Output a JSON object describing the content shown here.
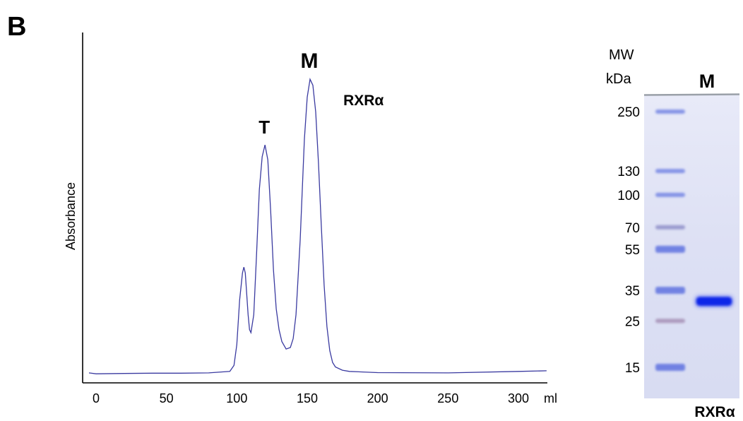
{
  "panel_label": "B",
  "chart_data": [
    {
      "type": "line",
      "title": "",
      "xlabel": "ml",
      "ylabel": "Absorbance",
      "xlim": [
        -8,
        325
      ],
      "ylim": [
        0,
        1
      ],
      "x_ticks": [
        0,
        50,
        100,
        150,
        200,
        250,
        300
      ],
      "x_tick_labels": [
        "0",
        "50",
        "100",
        "150",
        "200",
        "250",
        "300"
      ],
      "grid": false,
      "legend": "none",
      "line_color": "#3a3aa0",
      "series": [
        {
          "name": "RXRα",
          "x": [
            -5,
            0,
            20,
            40,
            60,
            80,
            95,
            98,
            100,
            102,
            104,
            105,
            106,
            108,
            109,
            110,
            112,
            114,
            116,
            118,
            120,
            122,
            124,
            126,
            128,
            130,
            132,
            135,
            138,
            140,
            142,
            145,
            148,
            150,
            152,
            154,
            156,
            158,
            160,
            162,
            164,
            166,
            168,
            170,
            175,
            180,
            200,
            250,
            300,
            320
          ],
          "y": [
            0.005,
            0.002,
            0.003,
            0.004,
            0.004,
            0.005,
            0.01,
            0.03,
            0.1,
            0.25,
            0.34,
            0.36,
            0.34,
            0.2,
            0.15,
            0.14,
            0.2,
            0.4,
            0.62,
            0.73,
            0.77,
            0.72,
            0.55,
            0.35,
            0.22,
            0.15,
            0.11,
            0.085,
            0.09,
            0.12,
            0.2,
            0.45,
            0.79,
            0.93,
            0.99,
            0.97,
            0.88,
            0.71,
            0.5,
            0.3,
            0.16,
            0.08,
            0.04,
            0.025,
            0.014,
            0.01,
            0.006,
            0.005,
            0.01,
            0.012
          ]
        }
      ],
      "annotations": [
        {
          "text": "T",
          "x": 120,
          "y": 0.77
        },
        {
          "text": "M",
          "x": 152,
          "y": 0.99
        },
        {
          "text": "RXRα",
          "x": 190,
          "y": 0.96
        }
      ]
    },
    {
      "type": "gel",
      "title": "",
      "header_mw": "MW",
      "header_unit": "kDa",
      "lane_label": "M",
      "bottom_label": "RXRα",
      "markers": [
        {
          "label": "250",
          "kda": 250
        },
        {
          "label": "130",
          "kda": 130
        },
        {
          "label": "100",
          "kda": 100
        },
        {
          "label": "70",
          "kda": 70
        },
        {
          "label": "55",
          "kda": 55
        },
        {
          "label": "35",
          "kda": 35
        },
        {
          "label": "25",
          "kda": 25
        },
        {
          "label": "15",
          "kda": 15
        }
      ],
      "sample_band_kda": 31
    }
  ]
}
